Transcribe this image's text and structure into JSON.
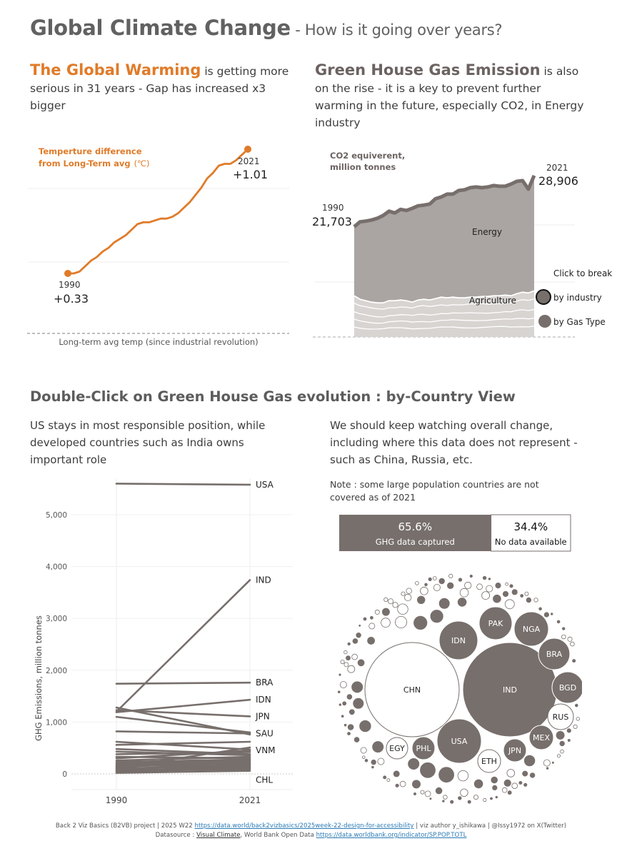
{
  "header": {
    "title": "Global Climate Change",
    "subtitle": " - How is it going over years?"
  },
  "warming": {
    "headline": "The Global Warming",
    "text": " is getting more serious in 31 years - Gap has increased x3 bigger",
    "chart_title_line1": "Temperture difference",
    "chart_title_line2": "from Long-Term avg",
    "chart_title_unit": "(℃)",
    "start_year": "1990",
    "start_value": "+0.33",
    "end_year": "2021",
    "end_value": "+1.01",
    "baseline_label": "Long-term avg temp (since industrial revolution)",
    "color": "#e07b29"
  },
  "ghg": {
    "headline": "Green House Gas Emission",
    "text": " is also on the rise - it is a key to prevent further warming in the future, especially CO2, in Energy industry",
    "chart_title_line1": "CO2 equiverent,",
    "chart_title_line2": "million tonnes",
    "start_year": "1990",
    "start_value": "21,703",
    "end_year": "2021",
    "end_value": "28,906",
    "energy_label": "Energy",
    "agriculture_label": "Agriculture",
    "click_label": "Click to break",
    "by_industry": "by industry",
    "by_gas": "by Gas Type"
  },
  "country_section": {
    "title": "Double-Click on Green House Gas evolution : by-Country View",
    "left_text": "US stays in most responsible position, while developed countries such as India owns important role",
    "right_text": "We should keep watching overall change, including where this data does not represent - such as China, Russia, etc.",
    "note": "Note : some large population countries are not covered as of 2021",
    "captured_pct": "65.6%",
    "captured_label": "GHG data captured",
    "missing_pct": "34.4%",
    "missing_label": "No data available",
    "bubble_labels": [
      "CHN",
      "IND",
      "USA",
      "IDN",
      "PAK",
      "NGA",
      "BRA",
      "BGD",
      "RUS",
      "MEX",
      "JPN",
      "ETH",
      "PHL",
      "EGY"
    ]
  },
  "chart_data": [
    {
      "type": "line",
      "title": "Temperture difference from Long-Term avg (℃)",
      "x": [
        1990,
        1991,
        1992,
        1993,
        1994,
        1995,
        1996,
        1997,
        1998,
        1999,
        2000,
        2001,
        2002,
        2003,
        2004,
        2005,
        2006,
        2007,
        2008,
        2009,
        2010,
        2011,
        2012,
        2013,
        2014,
        2015,
        2016,
        2017,
        2018,
        2019,
        2020,
        2021
      ],
      "values": [
        0.33,
        0.33,
        0.34,
        0.37,
        0.4,
        0.42,
        0.45,
        0.47,
        0.5,
        0.52,
        0.54,
        0.57,
        0.6,
        0.61,
        0.61,
        0.62,
        0.63,
        0.63,
        0.64,
        0.66,
        0.69,
        0.72,
        0.76,
        0.8,
        0.85,
        0.88,
        0.92,
        0.93,
        0.93,
        0.95,
        0.98,
        1.01
      ],
      "ylim": [
        -0.07,
        1.15
      ]
    },
    {
      "type": "area",
      "title": "CO2 equiverent, million tonnes",
      "x": [
        1990,
        1991,
        1992,
        1993,
        1994,
        1995,
        1996,
        1997,
        1998,
        1999,
        2000,
        2001,
        2002,
        2003,
        2004,
        2005,
        2006,
        2007,
        2008,
        2009,
        2010,
        2011,
        2012,
        2013,
        2014,
        2015,
        2016,
        2017,
        2018,
        2019,
        2020,
        2021
      ],
      "series": [
        {
          "name": "Energy",
          "values": [
            21703,
            22400,
            22500,
            22650,
            22900,
            23300,
            23900,
            23650,
            24150,
            24000,
            24300,
            24650,
            24750,
            24900,
            25650,
            25900,
            26300,
            26300,
            26800,
            26900,
            27200,
            27300,
            27200,
            27300,
            27500,
            27400,
            27400,
            27700,
            28100,
            28200,
            27000,
            28906
          ]
        },
        {
          "name": "Agriculture",
          "values": [
            12000,
            11500,
            11300,
            11100,
            11000,
            11000,
            11300,
            11300,
            11400,
            11300,
            11100,
            11400,
            11500,
            11400,
            11600,
            11800,
            11700,
            11800,
            11700,
            11700,
            11800,
            11800,
            11900,
            11900,
            12000,
            12000,
            12100,
            12000,
            12300,
            12500,
            12400,
            12700
          ]
        }
      ],
      "ylim": [
        5000,
        32000
      ]
    },
    {
      "type": "line",
      "ylabel": "GHG Emissions, million tonnes",
      "categories": [
        "1990",
        "2021"
      ],
      "ylim": [
        -300,
        5800
      ],
      "yticks": [
        0,
        1000,
        2000,
        3000,
        4000,
        5000
      ],
      "ytick_labels": [
        "0",
        "1,000",
        "2,000",
        "3,000",
        "4,000",
        "5,000"
      ],
      "series": [
        {
          "name": "USA",
          "values": [
            5600,
            5580
          ]
        },
        {
          "name": "IND",
          "values": [
            1200,
            3740
          ]
        },
        {
          "name": "BRA",
          "values": [
            1740,
            1760
          ]
        },
        {
          "name": "IDN",
          "values": [
            1190,
            1430
          ]
        },
        {
          "name": "JPN",
          "values": [
            1230,
            1110
          ]
        },
        {
          "name": "SAU",
          "values": [
            820,
            780
          ]
        },
        {
          "name": "VNM",
          "values": [
            120,
            510
          ]
        },
        {
          "name": "CHL",
          "values": [
            70,
            130
          ]
        },
        {
          "name": "",
          "values": [
            1280,
            760
          ]
        },
        {
          "name": "",
          "values": [
            1100,
            800
          ]
        },
        {
          "name": "",
          "values": [
            620,
            470
          ]
        },
        {
          "name": "",
          "values": [
            560,
            620
          ]
        },
        {
          "name": "",
          "values": [
            480,
            380
          ]
        },
        {
          "name": "",
          "values": [
            430,
            360
          ]
        },
        {
          "name": "",
          "values": [
            380,
            420
          ]
        },
        {
          "name": "",
          "values": [
            330,
            300
          ]
        },
        {
          "name": "",
          "values": [
            300,
            450
          ]
        },
        {
          "name": "",
          "values": [
            260,
            330
          ]
        },
        {
          "name": "",
          "values": [
            230,
            280
          ]
        },
        {
          "name": "",
          "values": [
            200,
            250
          ]
        },
        {
          "name": "",
          "values": [
            170,
            220
          ]
        },
        {
          "name": "",
          "values": [
            150,
            180
          ]
        },
        {
          "name": "",
          "values": [
            130,
            260
          ]
        },
        {
          "name": "",
          "values": [
            110,
            150
          ]
        },
        {
          "name": "",
          "values": [
            90,
            200
          ]
        },
        {
          "name": "",
          "values": [
            60,
            90
          ]
        },
        {
          "name": "",
          "values": [
            40,
            110
          ]
        },
        {
          "name": "",
          "values": [
            20,
            60
          ]
        }
      ]
    },
    {
      "type": "bar",
      "categories": [
        "GHG data captured",
        "No data available"
      ],
      "values": [
        65.6,
        34.4
      ]
    }
  ],
  "footer": {
    "line1_a": "Back 2 Viz Basics (B2VB) project | 2025 W22 ",
    "line1_link": "https://data.world/back2vizbasics/2025week-22-design-for-accessibility",
    "line1_b": " | viz author y_ishikawa | @Issy1972 on X(Twitter)",
    "line2_a": "Datasource : ",
    "line2_link1": "Visual Climate",
    "line2_b": ", World Bank Open Data ",
    "line2_link2": "https://data.worldbank.org/indicator/SP.POP.TOTL"
  },
  "colors": {
    "orange": "#e07b29",
    "dark_gray": "#776f6c",
    "area_energy": "#aaa4a2",
    "area_agri": "#d8d4d2"
  }
}
